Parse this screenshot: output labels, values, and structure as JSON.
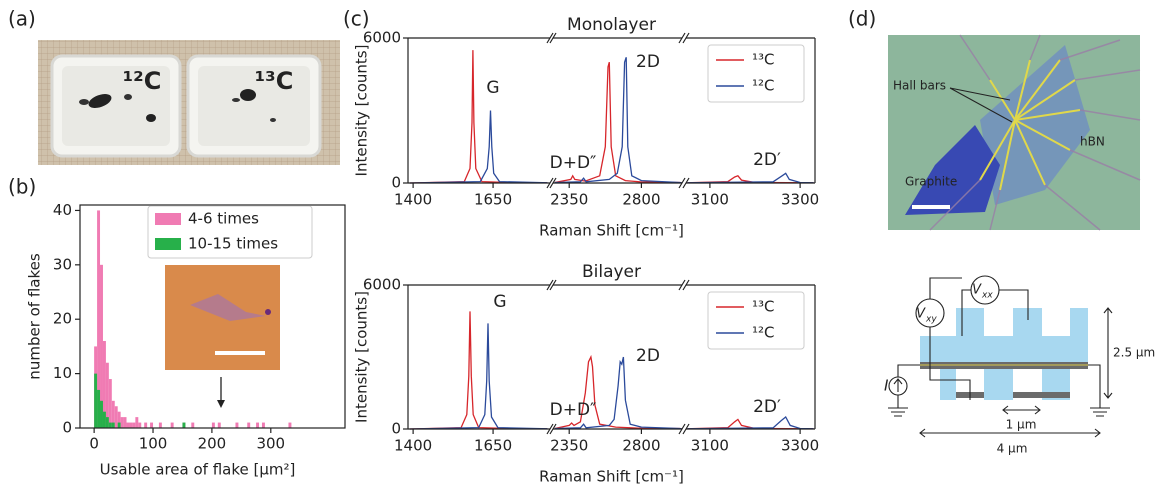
{
  "panel_labels": [
    "(a)",
    "(b)",
    "(c)",
    "(d)"
  ],
  "photo_a": {
    "labels": [
      "¹²C",
      "¹³C"
    ]
  },
  "photo_d": {
    "labels": [
      "Hall bars",
      "hBN",
      "Graphite"
    ]
  },
  "diagram_d": {
    "probes": [
      {
        "main": "V",
        "sub": "xy"
      },
      {
        "main": "V",
        "sub": "xx"
      }
    ],
    "source": "I",
    "dimensions": [
      "2.5 µm",
      "1 µm",
      "4 µm"
    ]
  },
  "chart_data": [
    {
      "type": "histogram",
      "xlabel": "Usable area of flake [µm²]",
      "ylabel": "number of flakes",
      "bins": [
        0,
        5,
        10,
        15,
        20,
        25,
        30,
        35,
        40,
        45,
        50,
        55,
        60,
        65,
        70,
        75,
        80,
        85,
        90,
        95,
        100,
        105,
        110,
        115,
        120,
        125,
        130,
        135,
        140,
        145,
        150,
        155,
        160,
        165,
        170,
        175,
        180,
        185,
        190,
        195,
        200,
        205,
        210,
        215,
        220,
        225,
        230,
        235,
        240,
        245,
        250,
        255,
        260,
        265,
        270,
        275,
        280,
        285,
        290,
        295,
        300,
        305,
        310,
        315,
        320,
        325,
        330,
        335
      ],
      "series": [
        {
          "name": "4-6 times",
          "color": "#f07bb3",
          "values": [
            15,
            40,
            30,
            16,
            12,
            9,
            5,
            4,
            3,
            2,
            2,
            1,
            1,
            1,
            2,
            1,
            0,
            1,
            0,
            1,
            0,
            0,
            1,
            0,
            0,
            0,
            1,
            0,
            0,
            0,
            1,
            0,
            0,
            1,
            0,
            0,
            0,
            0,
            0,
            0,
            1,
            0,
            1,
            0,
            0,
            0,
            0,
            0,
            1,
            0,
            0,
            0,
            1,
            0,
            0,
            1,
            0,
            1,
            0,
            0,
            0,
            0,
            0,
            0,
            0,
            0,
            1
          ]
        },
        {
          "name": "10-15 times",
          "color": "#27b04a",
          "values": [
            10,
            7,
            5,
            3,
            2,
            1,
            1,
            0,
            1,
            0,
            0,
            0,
            0,
            0,
            0,
            0,
            0,
            0,
            0,
            0,
            0,
            0,
            0,
            0,
            0,
            0,
            0,
            0,
            0,
            0,
            1,
            0,
            0,
            0,
            0,
            0,
            0,
            0,
            0,
            0,
            0,
            0,
            0,
            0,
            0,
            0,
            0,
            0,
            0,
            0,
            0,
            0,
            0,
            0,
            0,
            0,
            0,
            0,
            0,
            0,
            0,
            0,
            0,
            0,
            0,
            0,
            0
          ]
        }
      ],
      "xlim": [
        -24,
        426
      ],
      "xticks": [
        0,
        100,
        200,
        300
      ],
      "ylim": [
        0,
        41
      ],
      "yticks": [
        0,
        10,
        20,
        30,
        40
      ],
      "legend": "upper right"
    },
    {
      "type": "line",
      "title": "Monolayer",
      "xlabel": "Raman Shift [cm⁻¹]",
      "ylabel": "Intensity [counts]",
      "ylim": [
        0,
        6000
      ],
      "yticks": [
        0,
        6000
      ],
      "xsegments": [
        {
          "xlim": [
            1384,
            1828
          ],
          "xticks": [
            1400,
            1650
          ]
        },
        {
          "xlim": [
            2249,
            3053
          ],
          "xticks": [
            2350,
            2800
          ]
        },
        {
          "xlim": [
            3047,
            3333
          ],
          "xticks": [
            3100,
            3300
          ]
        }
      ],
      "annotations": [
        "G",
        "D+D″",
        "2D",
        "2D′"
      ],
      "legend": "upper right",
      "series": [
        {
          "name": "¹³C",
          "color": "#d7262b",
          "x": [
            1390,
            1560,
            1578,
            1584,
            1587,
            1590,
            1596,
            1615,
            1700,
            1820,
            2260,
            2360,
            2372,
            2385,
            2450,
            2540,
            2575,
            2592,
            2600,
            2612,
            2640,
            2700,
            2800,
            3040,
            3050,
            3140,
            3155,
            3162,
            3170,
            3200,
            3330
          ],
          "values": [
            0,
            60,
            600,
            2500,
            5500,
            2500,
            600,
            60,
            20,
            10,
            20,
            150,
            300,
            150,
            80,
            300,
            1500,
            4800,
            5000,
            1500,
            300,
            100,
            40,
            20,
            10,
            60,
            250,
            300,
            120,
            20,
            10
          ]
        },
        {
          "name": "¹²C",
          "color": "#2b4a9b",
          "x": [
            1390,
            1610,
            1632,
            1638,
            1642,
            1646,
            1652,
            1670,
            1820,
            2260,
            2420,
            2440,
            2455,
            2600,
            2650,
            2680,
            2695,
            2705,
            2715,
            2740,
            2800,
            3040,
            3050,
            3240,
            3260,
            3268,
            3276,
            3300,
            3330
          ],
          "values": [
            0,
            60,
            600,
            1500,
            3000,
            1500,
            400,
            60,
            10,
            20,
            50,
            200,
            50,
            150,
            400,
            1500,
            5000,
            5200,
            1500,
            300,
            100,
            20,
            10,
            50,
            300,
            400,
            150,
            20,
            10
          ]
        }
      ]
    },
    {
      "type": "line",
      "title": "Bilayer",
      "xlabel": "Raman Shift [cm⁻¹]",
      "ylabel": "Intensity [counts]",
      "ylim": [
        0,
        6000
      ],
      "yticks": [
        0,
        6000
      ],
      "xsegments": [
        {
          "xlim": [
            1384,
            1828
          ],
          "xticks": [
            1400,
            1650
          ]
        },
        {
          "xlim": [
            2249,
            3053
          ],
          "xticks": [
            2350,
            2800
          ]
        },
        {
          "xlim": [
            3047,
            3333
          ],
          "xticks": [
            3100,
            3300
          ]
        }
      ],
      "annotations": [
        "G",
        "D+D″",
        "2D",
        "2D′"
      ],
      "legend": "upper right",
      "series": [
        {
          "name": "¹³C",
          "color": "#d7262b",
          "x": [
            1390,
            1550,
            1568,
            1574,
            1578,
            1582,
            1588,
            1605,
            1700,
            1820,
            2260,
            2350,
            2365,
            2380,
            2420,
            2450,
            2470,
            2485,
            2495,
            2510,
            2540,
            2640,
            2800,
            3040,
            3050,
            3140,
            3155,
            3162,
            3170,
            3200,
            3330
          ],
          "values": [
            0,
            60,
            600,
            2200,
            4900,
            2200,
            600,
            60,
            20,
            10,
            20,
            150,
            250,
            150,
            300,
            1500,
            2800,
            3000,
            2600,
            1000,
            200,
            80,
            30,
            20,
            10,
            60,
            300,
            400,
            150,
            20,
            10
          ]
        },
        {
          "name": "¹²C",
          "color": "#2b4a9b",
          "x": [
            1390,
            1605,
            1624,
            1630,
            1634,
            1638,
            1645,
            1665,
            1820,
            2260,
            2420,
            2440,
            2455,
            2600,
            2630,
            2655,
            2668,
            2678,
            2688,
            2700,
            2730,
            2800,
            3040,
            3050,
            3240,
            3258,
            3268,
            3278,
            3300,
            3330
          ],
          "values": [
            0,
            60,
            600,
            2000,
            4400,
            2000,
            500,
            60,
            10,
            20,
            50,
            200,
            50,
            150,
            400,
            1800,
            2800,
            2700,
            3000,
            1200,
            200,
            80,
            20,
            10,
            50,
            350,
            500,
            150,
            20,
            10
          ]
        }
      ]
    }
  ]
}
